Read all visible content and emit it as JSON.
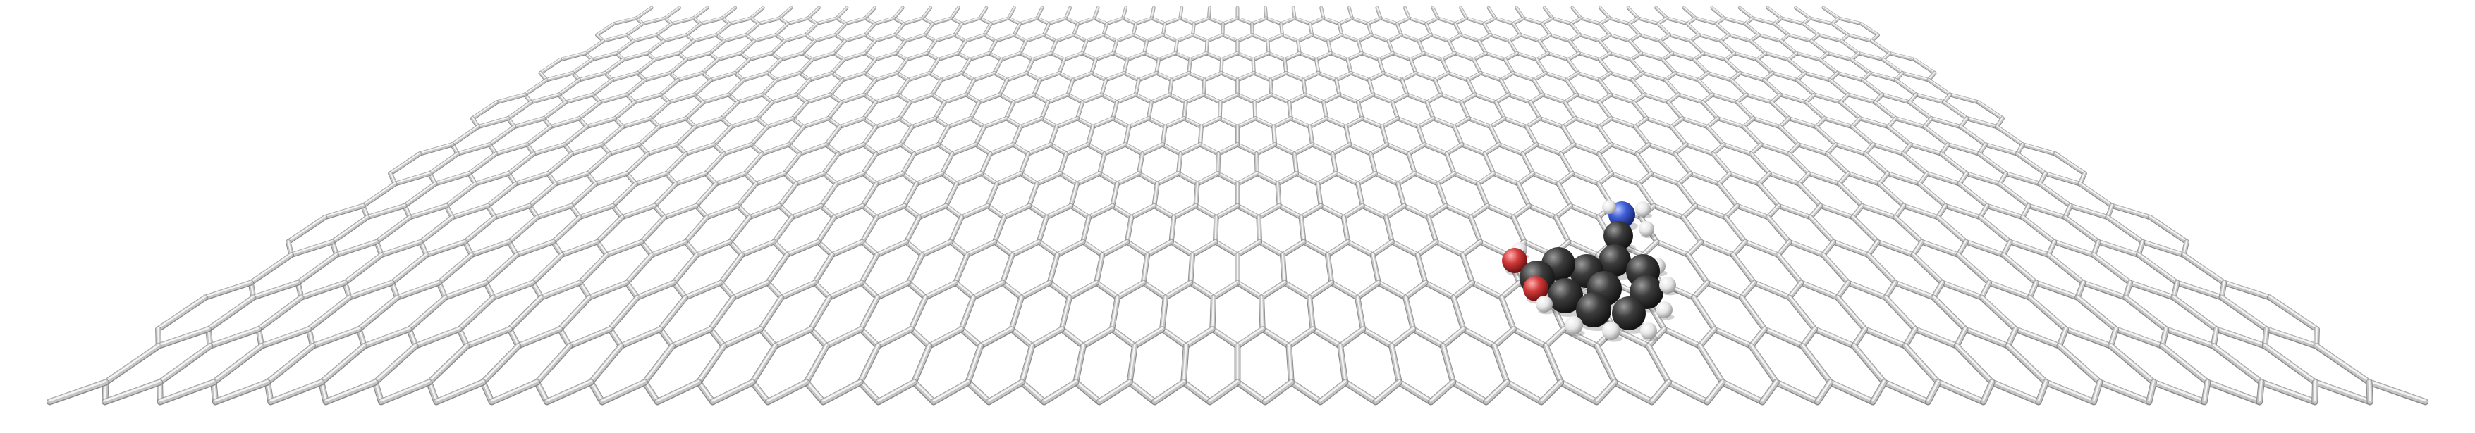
{
  "scene": {
    "subject": "graphene-sheet-with-adsorbed-molecule",
    "background_color": "#ffffff",
    "lattice": {
      "type": "hexagonal",
      "bond_color": "#c4c4c4",
      "bond_highlight_color": "#f4f4f4",
      "bond_shadow_color": "#8a8a8a"
    },
    "molecule": {
      "rings": 2,
      "atom_colors": {
        "carbon": "#3c3c3c",
        "hydrogen": "#f2f2f2",
        "oxygen": "#d23a3a",
        "nitrogen": "#3f5ed6"
      }
    }
  }
}
